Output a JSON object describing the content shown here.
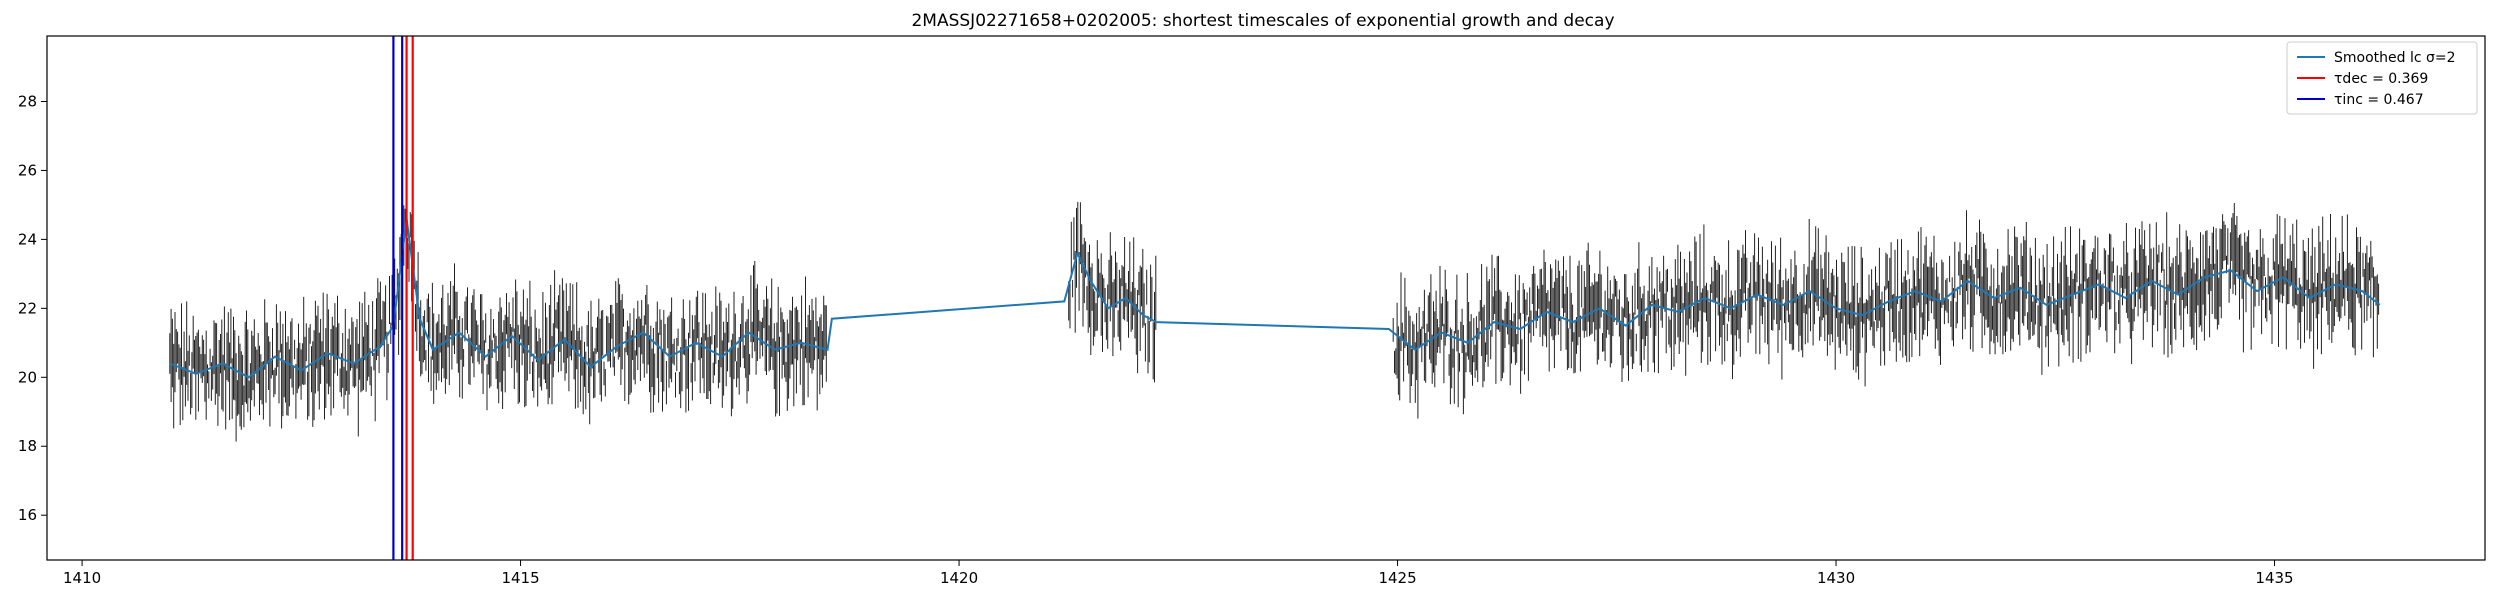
{
  "chart_data": {
    "type": "line",
    "title": "2MASSJ02271658+0202005: shortest timescales of exponential growth and decay",
    "xlabel": "",
    "ylabel": "",
    "xlim": [
      1409.6,
      1437.4
    ],
    "ylim": [
      14.7,
      29.9
    ],
    "xticks": [
      1410,
      1415,
      1420,
      1425,
      1430,
      1435
    ],
    "yticks": [
      16,
      18,
      20,
      22,
      24,
      26,
      28
    ],
    "grid": false,
    "legend_position": "top-right",
    "legend": [
      {
        "text": "Smoothed lc σ=2",
        "color": "#1f77b4"
      },
      {
        "text": "τdec = 0.369",
        "color": "#ff0000"
      },
      {
        "text": "τinc = 0.467",
        "color": "#0000cc"
      }
    ],
    "segments": [
      {
        "x_start": 1411.0,
        "x_end": 1418.5,
        "smoothed": [
          [
            1411.0,
            20.4
          ],
          [
            1411.3,
            20.1
          ],
          [
            1411.6,
            20.4
          ],
          [
            1411.9,
            20.0
          ],
          [
            1412.2,
            20.6
          ],
          [
            1412.5,
            20.2
          ],
          [
            1412.8,
            20.7
          ],
          [
            1413.1,
            20.4
          ],
          [
            1413.4,
            20.9
          ],
          [
            1413.55,
            21.5
          ],
          [
            1413.7,
            24.6
          ],
          [
            1413.85,
            21.7
          ],
          [
            1414.0,
            20.8
          ],
          [
            1414.3,
            21.3
          ],
          [
            1414.6,
            20.6
          ],
          [
            1414.9,
            21.2
          ],
          [
            1415.2,
            20.5
          ],
          [
            1415.5,
            21.1
          ],
          [
            1415.8,
            20.3
          ],
          [
            1416.1,
            20.9
          ],
          [
            1416.4,
            21.3
          ],
          [
            1416.7,
            20.6
          ],
          [
            1417.0,
            21.0
          ],
          [
            1417.3,
            20.6
          ],
          [
            1417.6,
            21.3
          ],
          [
            1417.9,
            20.8
          ],
          [
            1418.2,
            21.0
          ],
          [
            1418.5,
            20.8
          ]
        ]
      },
      {
        "x_start": 1421.25,
        "x_end": 1422.25,
        "smoothed": [
          [
            1418.55,
            21.7
          ],
          [
            1421.2,
            22.2
          ],
          [
            1421.35,
            23.6
          ],
          [
            1421.5,
            22.8
          ],
          [
            1421.7,
            22.0
          ],
          [
            1421.9,
            22.3
          ],
          [
            1422.1,
            21.8
          ],
          [
            1422.25,
            21.6
          ]
        ]
      },
      {
        "x_start": 1424.95,
        "x_end": 1436.2,
        "smoothed": [
          [
            1424.9,
            21.4
          ],
          [
            1425.2,
            20.8
          ],
          [
            1425.5,
            21.3
          ],
          [
            1425.8,
            21.0
          ],
          [
            1426.1,
            21.6
          ],
          [
            1426.4,
            21.4
          ],
          [
            1426.7,
            21.9
          ],
          [
            1427.0,
            21.6
          ],
          [
            1427.3,
            22.0
          ],
          [
            1427.6,
            21.5
          ],
          [
            1427.9,
            22.1
          ],
          [
            1428.2,
            21.9
          ],
          [
            1428.5,
            22.3
          ],
          [
            1428.8,
            22.0
          ],
          [
            1429.1,
            22.4
          ],
          [
            1429.4,
            22.1
          ],
          [
            1429.7,
            22.5
          ],
          [
            1430.0,
            22.0
          ],
          [
            1430.3,
            21.8
          ],
          [
            1430.6,
            22.2
          ],
          [
            1430.9,
            22.5
          ],
          [
            1431.2,
            22.2
          ],
          [
            1431.5,
            22.8
          ],
          [
            1431.8,
            22.3
          ],
          [
            1432.1,
            22.6
          ],
          [
            1432.4,
            22.1
          ],
          [
            1432.7,
            22.4
          ],
          [
            1433.0,
            22.7
          ],
          [
            1433.3,
            22.3
          ],
          [
            1433.6,
            22.8
          ],
          [
            1433.9,
            22.4
          ],
          [
            1434.2,
            22.9
          ],
          [
            1434.5,
            23.1
          ],
          [
            1434.8,
            22.5
          ],
          [
            1435.1,
            22.9
          ],
          [
            1435.4,
            22.3
          ],
          [
            1435.7,
            22.7
          ],
          [
            1436.0,
            22.5
          ],
          [
            1436.2,
            22.1
          ]
        ]
      }
    ],
    "raw_band": {
      "color": "#222222",
      "spread": 1.7
    },
    "vertical_lines": [
      {
        "x": 1413.55,
        "color": "#0000cc"
      },
      {
        "x": 1413.65,
        "color": "#0000cc"
      },
      {
        "x": 1413.7,
        "color": "#ff0000"
      },
      {
        "x": 1413.77,
        "color": "#ff0000"
      }
    ]
  }
}
